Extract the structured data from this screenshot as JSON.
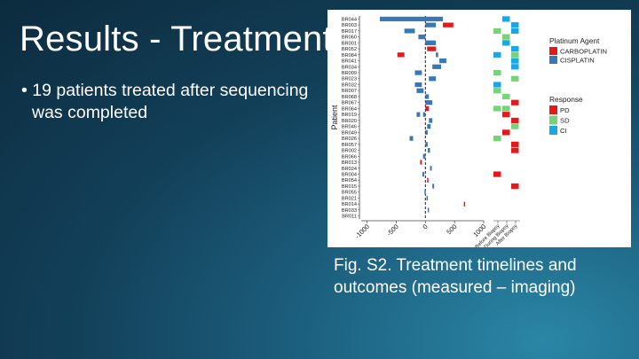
{
  "slide": {
    "title": "Results - Treatment",
    "bullet": "19 patients treated after sequencing was completed",
    "caption": "Fig. S2. Treatment timelines and outcomes (measured – imaging)"
  },
  "colors": {
    "carboplatin": "#e31a1c",
    "cisplatin": "#3a78b5",
    "PD": "#e31a1c",
    "SD": "#74d477",
    "CI": "#1aa7e6"
  },
  "chart_data": {
    "type": "bar",
    "subtype": "horizontal-timeline",
    "ylabel": "Patient",
    "xlabel": "",
    "xlim": [
      -1100,
      1000
    ],
    "xticks": [
      -1000,
      -500,
      0,
      500,
      1000
    ],
    "reference_line": 0,
    "patients": [
      "BR044",
      "BR003",
      "BR017",
      "BR060",
      "BR001",
      "BR052",
      "BR084",
      "BR041",
      "BR034",
      "BR009",
      "BR023",
      "BR032",
      "BR007",
      "BR068",
      "BR067",
      "BR064",
      "BR019",
      "BR020",
      "BR046",
      "BR049",
      "BR026",
      "BR057",
      "BR002",
      "BR066",
      "BR013",
      "BR024",
      "BR004",
      "BR054",
      "BR015",
      "BR055",
      "BR021",
      "BR014",
      "BR033",
      "BR011"
    ],
    "agent_legend": {
      "title": "Platinum Agent",
      "entries": [
        "CARBOPLATIN",
        "CISPLATIN"
      ]
    },
    "response_legend": {
      "title": "Response",
      "entries": [
        "PD",
        "SD",
        "CI"
      ]
    },
    "response_columns": [
      "Before Biopsy",
      "During Biopsy",
      "After Biopsy"
    ],
    "treatment_bars": [
      {
        "patient": "BR044",
        "start": -780,
        "end": 300,
        "agent": "CISPLATIN"
      },
      {
        "patient": "BR003",
        "start": 0,
        "end": 180,
        "agent": "CISPLATIN"
      },
      {
        "patient": "BR003",
        "start": 300,
        "end": 480,
        "agent": "CARBOPLATIN"
      },
      {
        "patient": "BR017",
        "start": -360,
        "end": -180,
        "agent": "CISPLATIN"
      },
      {
        "patient": "BR060",
        "start": -120,
        "end": 0,
        "agent": "CISPLATIN"
      },
      {
        "patient": "BR001",
        "start": 0,
        "end": 180,
        "agent": "CISPLATIN"
      },
      {
        "patient": "BR001",
        "start": 0,
        "end": 160,
        "agent": "CISPLATIN"
      },
      {
        "patient": "BR052",
        "start": 30,
        "end": 180,
        "agent": "CARBOPLATIN"
      },
      {
        "patient": "BR084",
        "start": -480,
        "end": -360,
        "agent": "CARBOPLATIN"
      },
      {
        "patient": "BR084",
        "start": 180,
        "end": 220,
        "agent": "CISPLATIN"
      },
      {
        "patient": "BR041",
        "start": 240,
        "end": 360,
        "agent": "CISPLATIN"
      },
      {
        "patient": "BR034",
        "start": 120,
        "end": 270,
        "agent": "CISPLATIN"
      },
      {
        "patient": "BR009",
        "start": -180,
        "end": -60,
        "agent": "CISPLATIN"
      },
      {
        "patient": "BR023",
        "start": 60,
        "end": 180,
        "agent": "CISPLATIN"
      },
      {
        "patient": "BR032",
        "start": -180,
        "end": -60,
        "agent": "CISPLATIN"
      },
      {
        "patient": "BR007",
        "start": -150,
        "end": -30,
        "agent": "CISPLATIN"
      },
      {
        "patient": "BR068",
        "start": 0,
        "end": 60,
        "agent": "CISPLATIN"
      },
      {
        "patient": "BR067",
        "start": 0,
        "end": 120,
        "agent": "CISPLATIN"
      },
      {
        "patient": "BR064",
        "start": 0,
        "end": 60,
        "agent": "CARBOPLATIN"
      },
      {
        "patient": "BR019",
        "start": -150,
        "end": -90,
        "agent": "CISPLATIN"
      },
      {
        "patient": "BR019",
        "start": -40,
        "end": 0,
        "agent": "CISPLATIN"
      },
      {
        "patient": "BR020",
        "start": 60,
        "end": 120,
        "agent": "CISPLATIN"
      },
      {
        "patient": "BR046",
        "start": 30,
        "end": 90,
        "agent": "CISPLATIN"
      },
      {
        "patient": "BR049",
        "start": 0,
        "end": 40,
        "agent": "CISPLATIN"
      },
      {
        "patient": "BR026",
        "start": -270,
        "end": -210,
        "agent": "CISPLATIN"
      },
      {
        "patient": "BR057",
        "start": 0,
        "end": 40,
        "agent": "CISPLATIN"
      },
      {
        "patient": "BR002",
        "start": 40,
        "end": 80,
        "agent": "CISPLATIN"
      },
      {
        "patient": "BR066",
        "start": -40,
        "end": 0,
        "agent": "CISPLATIN"
      },
      {
        "patient": "BR013",
        "start": -90,
        "end": -60,
        "agent": "CARBOPLATIN"
      },
      {
        "patient": "BR024",
        "start": 80,
        "end": 110,
        "agent": "CISPLATIN"
      },
      {
        "patient": "BR004",
        "start": -50,
        "end": -20,
        "agent": "CISPLATIN"
      },
      {
        "patient": "BR054",
        "start": 30,
        "end": 50,
        "agent": "CARBOPLATIN"
      },
      {
        "patient": "BR015",
        "start": 120,
        "end": 150,
        "agent": "CISPLATIN"
      },
      {
        "patient": "BR055",
        "start": -15,
        "end": 5,
        "agent": "CISPLATIN"
      },
      {
        "patient": "BR021",
        "start": 20,
        "end": 40,
        "agent": "CISPLATIN"
      },
      {
        "patient": "BR014",
        "start": 660,
        "end": 680,
        "agent": "CARBOPLATIN"
      },
      {
        "patient": "BR033",
        "start": 40,
        "end": 60,
        "agent": "CISPLATIN"
      }
    ],
    "responses": [
      {
        "patient": "BR044",
        "column": "During Biopsy",
        "response": "CI"
      },
      {
        "patient": "BR003",
        "column": "After Biopsy",
        "response": "CI"
      },
      {
        "patient": "BR017",
        "column": "Before Biopsy",
        "response": "SD"
      },
      {
        "patient": "BR017",
        "column": "After Biopsy",
        "response": "CI"
      },
      {
        "patient": "BR060",
        "column": "During Biopsy",
        "response": "SD"
      },
      {
        "patient": "BR001",
        "column": "During Biopsy",
        "response": "CI"
      },
      {
        "patient": "BR052",
        "column": "After Biopsy",
        "response": "CI"
      },
      {
        "patient": "BR084",
        "column": "Before Biopsy",
        "response": "CI"
      },
      {
        "patient": "BR084",
        "column": "After Biopsy",
        "response": "SD"
      },
      {
        "patient": "BR041",
        "column": "After Biopsy",
        "response": "CI"
      },
      {
        "patient": "BR034",
        "column": "After Biopsy",
        "response": "CI"
      },
      {
        "patient": "BR009",
        "column": "Before Biopsy",
        "response": "SD"
      },
      {
        "patient": "BR023",
        "column": "After Biopsy",
        "response": "SD"
      },
      {
        "patient": "BR032",
        "column": "Before Biopsy",
        "response": "CI"
      },
      {
        "patient": "BR007",
        "column": "Before Biopsy",
        "response": "SD"
      },
      {
        "patient": "BR068",
        "column": "During Biopsy",
        "response": "SD"
      },
      {
        "patient": "BR067",
        "column": "After Biopsy",
        "response": "PD"
      },
      {
        "patient": "BR064",
        "column": "During Biopsy",
        "response": "SD"
      },
      {
        "patient": "BR064",
        "column": "Before Biopsy",
        "response": "SD"
      },
      {
        "patient": "BR019",
        "column": "During Biopsy",
        "response": "PD"
      },
      {
        "patient": "BR020",
        "column": "After Biopsy",
        "response": "PD"
      },
      {
        "patient": "BR046",
        "column": "After Biopsy",
        "response": "SD"
      },
      {
        "patient": "BR049",
        "column": "During Biopsy",
        "response": "PD"
      },
      {
        "patient": "BR026",
        "column": "Before Biopsy",
        "response": "SD"
      },
      {
        "patient": "BR057",
        "column": "After Biopsy",
        "response": "PD"
      },
      {
        "patient": "BR002",
        "column": "After Biopsy",
        "response": "PD"
      },
      {
        "patient": "BR004",
        "column": "Before Biopsy",
        "response": "PD"
      },
      {
        "patient": "BR015",
        "column": "After Biopsy",
        "response": "PD"
      }
    ]
  }
}
